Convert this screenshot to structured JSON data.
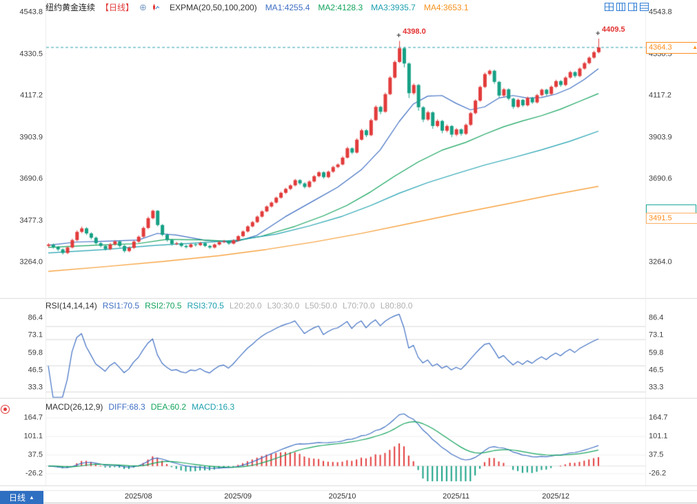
{
  "header": {
    "symbol": "纽约黄金连续",
    "period_tag": "【日线】",
    "add_icon": "⊕",
    "indicator_title": "EXPMA(20,50,100,200)",
    "ma_values": [
      {
        "label": "MA1:4255.4",
        "color": "#3e6ec2"
      },
      {
        "label": "MA2:4128.3",
        "color": "#13a35c"
      },
      {
        "label": "MA3:3935.7",
        "color": "#1b9fae"
      },
      {
        "label": "MA4:3653.1",
        "color": "#f5921e"
      }
    ]
  },
  "icons": {
    "layout": [
      "layout-grid-2x2",
      "layout-columns",
      "layout-split-right",
      "layout-rows"
    ],
    "indicator_icon": "mini-candle-chart",
    "seal_icon": "red-badge"
  },
  "rsi_header": {
    "title": "RSI(14,14,14)",
    "items": [
      {
        "label": "RSI1:70.5",
        "color": "#3e6ec2"
      },
      {
        "label": "RSI2:70.5",
        "color": "#13a35c"
      },
      {
        "label": "RSI3:70.5",
        "color": "#1b9fae"
      },
      {
        "label": "L20:20.0",
        "color": "#b0b0b0"
      },
      {
        "label": "L30:30.0",
        "color": "#b0b0b0"
      },
      {
        "label": "L50:50.0",
        "color": "#b0b0b0"
      },
      {
        "label": "L70:70.0",
        "color": "#b0b0b0"
      },
      {
        "label": "L80:80.0",
        "color": "#b0b0b0"
      }
    ]
  },
  "macd_header": {
    "title": "MACD(26,12,9)",
    "items": [
      {
        "label": "DIFF:68.3",
        "color": "#3e6ec2"
      },
      {
        "label": "DEA:60.2",
        "color": "#13a35c"
      },
      {
        "label": "MACD:16.3",
        "color": "#1b9fae"
      }
    ]
  },
  "bottom_bar": {
    "period_label": "日线",
    "arrow": "▲"
  },
  "tags": {
    "last_price": "4364.3",
    "last_price_arrow": "▲",
    "secondary_price": "3491.5"
  },
  "axes": {
    "main_ticks": [
      "4543.8",
      "4330.5",
      "4117.2",
      "3903.9",
      "3690.6",
      "3477.3",
      "3264.0"
    ],
    "rsi_ticks": [
      "86.4",
      "73.1",
      "59.8",
      "46.5",
      "33.3"
    ],
    "macd_ticks": [
      "164.7",
      "101.1",
      "37.5",
      "-26.2"
    ],
    "x_labels": [
      {
        "label": "2025/08",
        "index": 19
      },
      {
        "label": "2025/09",
        "index": 40
      },
      {
        "label": "2025/10",
        "index": 62
      },
      {
        "label": "2025/11",
        "index": 86
      },
      {
        "label": "2025/12",
        "index": 107
      }
    ]
  },
  "chart_data": {
    "type": "candlestick",
    "title": "纽约黄金连续 日线 (New York Gold Continuous, Daily)",
    "panels": [
      "price+EXPMA(20,50,100,200)",
      "RSI(14,14,14)",
      "MACD(26,12,9)"
    ],
    "up_color": "#e23b3b",
    "down_color": "#16a085",
    "price_line_color": "#2a9fae",
    "ylim_main": [
      3264.0,
      4543.8
    ],
    "ylim_rsi": [
      33.3,
      86.4
    ],
    "ylim_macd": [
      -26.2,
      164.7
    ],
    "current_price": 4364.3,
    "annotations": [
      {
        "text": "4398.0",
        "index": 74,
        "value": 4398.0
      },
      {
        "text": "4409.5",
        "index": 116,
        "value": 4409.5
      }
    ],
    "candles": [
      [
        3348,
        3362,
        3341,
        3355
      ],
      [
        3355,
        3360,
        3334,
        3342
      ],
      [
        3342,
        3348,
        3322,
        3330
      ],
      [
        3330,
        3336,
        3304,
        3312
      ],
      [
        3312,
        3347,
        3306,
        3340
      ],
      [
        3340,
        3385,
        3335,
        3378
      ],
      [
        3378,
        3428,
        3372,
        3420
      ],
      [
        3420,
        3447,
        3414,
        3438
      ],
      [
        3438,
        3444,
        3404,
        3412
      ],
      [
        3412,
        3418,
        3382,
        3390
      ],
      [
        3390,
        3396,
        3354,
        3362
      ],
      [
        3362,
        3368,
        3340,
        3348
      ],
      [
        3348,
        3354,
        3324,
        3332
      ],
      [
        3332,
        3363,
        3326,
        3356
      ],
      [
        3356,
        3378,
        3350,
        3371
      ],
      [
        3371,
        3377,
        3340,
        3348
      ],
      [
        3348,
        3354,
        3314,
        3322
      ],
      [
        3322,
        3345,
        3316,
        3338
      ],
      [
        3338,
        3377,
        3332,
        3370
      ],
      [
        3370,
        3402,
        3364,
        3395
      ],
      [
        3395,
        3448,
        3390,
        3440
      ],
      [
        3440,
        3498,
        3434,
        3490
      ],
      [
        3490,
        3534,
        3484,
        3528
      ],
      [
        3528,
        3532,
        3448,
        3455
      ],
      [
        3455,
        3460,
        3398,
        3405
      ],
      [
        3405,
        3411,
        3370,
        3378
      ],
      [
        3378,
        3384,
        3350,
        3358
      ],
      [
        3358,
        3369,
        3352,
        3362
      ],
      [
        3362,
        3367,
        3341,
        3348
      ],
      [
        3348,
        3354,
        3335,
        3342
      ],
      [
        3342,
        3362,
        3337,
        3356
      ],
      [
        3356,
        3361,
        3345,
        3352
      ],
      [
        3352,
        3369,
        3347,
        3362
      ],
      [
        3362,
        3367,
        3342,
        3348
      ],
      [
        3348,
        3353,
        3333,
        3340
      ],
      [
        3340,
        3361,
        3335,
        3355
      ],
      [
        3355,
        3374,
        3350,
        3368
      ],
      [
        3368,
        3379,
        3362,
        3372
      ],
      [
        3372,
        3377,
        3353,
        3360
      ],
      [
        3360,
        3382,
        3355,
        3376
      ],
      [
        3376,
        3404,
        3371,
        3398
      ],
      [
        3398,
        3428,
        3393,
        3422
      ],
      [
        3422,
        3454,
        3417,
        3448
      ],
      [
        3448,
        3476,
        3443,
        3470
      ],
      [
        3470,
        3504,
        3465,
        3498
      ],
      [
        3498,
        3531,
        3493,
        3525
      ],
      [
        3525,
        3556,
        3520,
        3550
      ],
      [
        3550,
        3576,
        3544,
        3570
      ],
      [
        3570,
        3601,
        3565,
        3595
      ],
      [
        3595,
        3626,
        3590,
        3620
      ],
      [
        3620,
        3646,
        3614,
        3640
      ],
      [
        3640,
        3664,
        3634,
        3658
      ],
      [
        3658,
        3691,
        3653,
        3685
      ],
      [
        3685,
        3690,
        3660,
        3668
      ],
      [
        3668,
        3674,
        3642,
        3650
      ],
      [
        3650,
        3684,
        3645,
        3678
      ],
      [
        3678,
        3711,
        3673,
        3705
      ],
      [
        3705,
        3731,
        3699,
        3725
      ],
      [
        3725,
        3730,
        3692,
        3700
      ],
      [
        3700,
        3734,
        3695,
        3728
      ],
      [
        3728,
        3758,
        3722,
        3752
      ],
      [
        3752,
        3771,
        3746,
        3765
      ],
      [
        3765,
        3808,
        3760,
        3800
      ],
      [
        3800,
        3856,
        3795,
        3848
      ],
      [
        3848,
        3853,
        3818,
        3826
      ],
      [
        3826,
        3900,
        3821,
        3892
      ],
      [
        3892,
        3948,
        3887,
        3940
      ],
      [
        3940,
        3946,
        3905,
        3915
      ],
      [
        3915,
        4000,
        3910,
        3992
      ],
      [
        3992,
        4068,
        3987,
        4060
      ],
      [
        4060,
        4066,
        4022,
        4035
      ],
      [
        4035,
        4133,
        4030,
        4125
      ],
      [
        4125,
        4218,
        4120,
        4210
      ],
      [
        4210,
        4298,
        4205,
        4290
      ],
      [
        4290,
        4398,
        4285,
        4360
      ],
      [
        4360,
        4366,
        4262,
        4282
      ],
      [
        4282,
        4288,
        4105,
        4130
      ],
      [
        4130,
        4180,
        4122,
        4172
      ],
      [
        4172,
        4177,
        4040,
        4058
      ],
      [
        4058,
        4064,
        3982,
        3995
      ],
      [
        3995,
        4040,
        3988,
        4032
      ],
      [
        4032,
        4037,
        3948,
        3962
      ],
      [
        3962,
        3996,
        3955,
        3988
      ],
      [
        3988,
        3993,
        3925,
        3938
      ],
      [
        3938,
        3970,
        3930,
        3962
      ],
      [
        3962,
        3967,
        3905,
        3918
      ],
      [
        3918,
        3952,
        3910,
        3945
      ],
      [
        3945,
        3950,
        3912,
        3922
      ],
      [
        3922,
        3975,
        3916,
        3968
      ],
      [
        3968,
        4035,
        3962,
        4028
      ],
      [
        4028,
        4099,
        4022,
        4092
      ],
      [
        4092,
        4169,
        4086,
        4162
      ],
      [
        4162,
        4236,
        4156,
        4228
      ],
      [
        4228,
        4252,
        4220,
        4245
      ],
      [
        4245,
        4250,
        4178,
        4188
      ],
      [
        4188,
        4193,
        4108,
        4118
      ],
      [
        4118,
        4157,
        4110,
        4150
      ],
      [
        4150,
        4155,
        4094,
        4102
      ],
      [
        4102,
        4107,
        4050,
        4060
      ],
      [
        4060,
        4103,
        4054,
        4096
      ],
      [
        4096,
        4101,
        4060,
        4068
      ],
      [
        4068,
        4113,
        4062,
        4106
      ],
      [
        4106,
        4111,
        4075,
        4083
      ],
      [
        4083,
        4127,
        4077,
        4120
      ],
      [
        4120,
        4154,
        4114,
        4148
      ],
      [
        4148,
        4153,
        4118,
        4126
      ],
      [
        4126,
        4170,
        4120,
        4163
      ],
      [
        4163,
        4199,
        4157,
        4192
      ],
      [
        4192,
        4197,
        4163,
        4172
      ],
      [
        4172,
        4217,
        4166,
        4210
      ],
      [
        4210,
        4245,
        4204,
        4238
      ],
      [
        4238,
        4243,
        4209,
        4218
      ],
      [
        4218,
        4263,
        4212,
        4256
      ],
      [
        4256,
        4291,
        4250,
        4284
      ],
      [
        4284,
        4319,
        4278,
        4312
      ],
      [
        4312,
        4347,
        4306,
        4340
      ],
      [
        4340,
        4409.5,
        4334,
        4364.3
      ]
    ],
    "ma_lines": [
      {
        "name": "EXPMA20",
        "color": "#3e6ec2",
        "points": [
          [
            0,
            3352
          ],
          [
            6,
            3368
          ],
          [
            12,
            3372
          ],
          [
            19,
            3378
          ],
          [
            23,
            3412
          ],
          [
            27,
            3404
          ],
          [
            33,
            3377
          ],
          [
            39,
            3366
          ],
          [
            44,
            3402
          ],
          [
            50,
            3498
          ],
          [
            56,
            3580
          ],
          [
            61,
            3648
          ],
          [
            66,
            3738
          ],
          [
            70,
            3840
          ],
          [
            74,
            3985
          ],
          [
            77,
            4075
          ],
          [
            80,
            4115
          ],
          [
            83,
            4118
          ],
          [
            86,
            4078
          ],
          [
            89,
            4045
          ],
          [
            92,
            4060
          ],
          [
            95,
            4105
          ],
          [
            98,
            4118
          ],
          [
            101,
            4105
          ],
          [
            104,
            4108
          ],
          [
            107,
            4125
          ],
          [
            110,
            4155
          ],
          [
            113,
            4200
          ],
          [
            116,
            4255.4
          ]
        ]
      },
      {
        "name": "EXPMA50",
        "color": "#13a35c",
        "points": [
          [
            0,
            3340
          ],
          [
            10,
            3352
          ],
          [
            19,
            3360
          ],
          [
            25,
            3382
          ],
          [
            32,
            3379
          ],
          [
            39,
            3371
          ],
          [
            45,
            3398
          ],
          [
            52,
            3448
          ],
          [
            58,
            3502
          ],
          [
            63,
            3556
          ],
          [
            68,
            3625
          ],
          [
            73,
            3705
          ],
          [
            78,
            3778
          ],
          [
            83,
            3838
          ],
          [
            88,
            3878
          ],
          [
            92,
            3920
          ],
          [
            96,
            3958
          ],
          [
            100,
            3988
          ],
          [
            104,
            4015
          ],
          [
            108,
            4048
          ],
          [
            112,
            4088
          ],
          [
            116,
            4128.3
          ]
        ]
      },
      {
        "name": "EXPMA100",
        "color": "#1b9fae",
        "points": [
          [
            0,
            3312
          ],
          [
            12,
            3330
          ],
          [
            22,
            3350
          ],
          [
            32,
            3364
          ],
          [
            40,
            3378
          ],
          [
            48,
            3408
          ],
          [
            55,
            3450
          ],
          [
            62,
            3500
          ],
          [
            68,
            3555
          ],
          [
            74,
            3618
          ],
          [
            80,
            3672
          ],
          [
            86,
            3718
          ],
          [
            92,
            3762
          ],
          [
            98,
            3800
          ],
          [
            104,
            3840
          ],
          [
            110,
            3884
          ],
          [
            116,
            3935.7
          ]
        ]
      },
      {
        "name": "EXPMA200",
        "color": "#f5921e",
        "points": [
          [
            0,
            3218
          ],
          [
            12,
            3242
          ],
          [
            24,
            3268
          ],
          [
            36,
            3298
          ],
          [
            46,
            3330
          ],
          [
            56,
            3368
          ],
          [
            66,
            3412
          ],
          [
            76,
            3462
          ],
          [
            86,
            3512
          ],
          [
            96,
            3560
          ],
          [
            106,
            3608
          ],
          [
            116,
            3653.1
          ]
        ]
      }
    ],
    "rsi": {
      "period": 14,
      "levels": [
        20,
        30,
        50,
        70,
        80
      ],
      "color": "#3e6ec2"
    },
    "macd": {
      "fast": 12,
      "slow": 26,
      "signal": 9,
      "diff_color": "#3e6ec2",
      "dea_color": "#13a35c"
    }
  }
}
